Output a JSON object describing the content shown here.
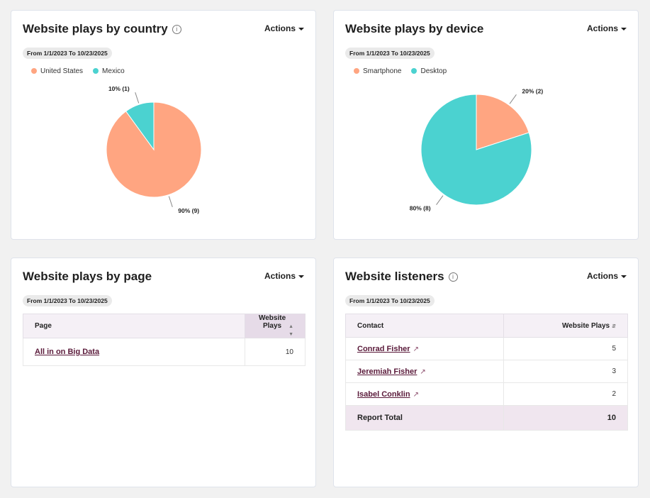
{
  "cards": {
    "country": {
      "title": "Website plays by country",
      "actions": "Actions",
      "date": "From 1/1/2023 To 10/23/2025"
    },
    "device": {
      "title": "Website plays by device",
      "actions": "Actions",
      "date": "From 1/1/2023 To 10/23/2025"
    },
    "page": {
      "title": "Website plays by page",
      "actions": "Actions",
      "date": "From 1/1/2023 To 10/23/2025",
      "columns": [
        "Page",
        "Website Plays"
      ],
      "rows": [
        {
          "page": "All in on Big Data",
          "plays": "10"
        }
      ]
    },
    "listeners": {
      "title": "Website listeners",
      "actions": "Actions",
      "date": "From 1/1/2023 To 10/23/2025",
      "columns": [
        "Contact",
        "Website Plays"
      ],
      "rows": [
        {
          "contact": "Conrad Fisher",
          "plays": "5"
        },
        {
          "contact": "Jeremiah Fisher",
          "plays": "3"
        },
        {
          "contact": "Isabel Conklin",
          "plays": "2"
        }
      ],
      "total_label": "Report Total",
      "total": "10"
    }
  },
  "chart_data": [
    {
      "type": "pie",
      "title": "Website plays by country",
      "legend": "top-left",
      "categories": [
        "United States",
        "Mexico"
      ],
      "values": [
        9,
        1
      ],
      "labels": [
        "90% (9)",
        "10% (1)"
      ],
      "colors": [
        "#ffa581",
        "#4bd2d0"
      ]
    },
    {
      "type": "pie",
      "title": "Website plays by device",
      "legend": "top-left",
      "categories": [
        "Smartphone",
        "Desktop"
      ],
      "values": [
        2,
        8
      ],
      "labels": [
        "20% (2)",
        "80% (8)"
      ],
      "colors": [
        "#ffa581",
        "#4bd2d0"
      ]
    }
  ]
}
